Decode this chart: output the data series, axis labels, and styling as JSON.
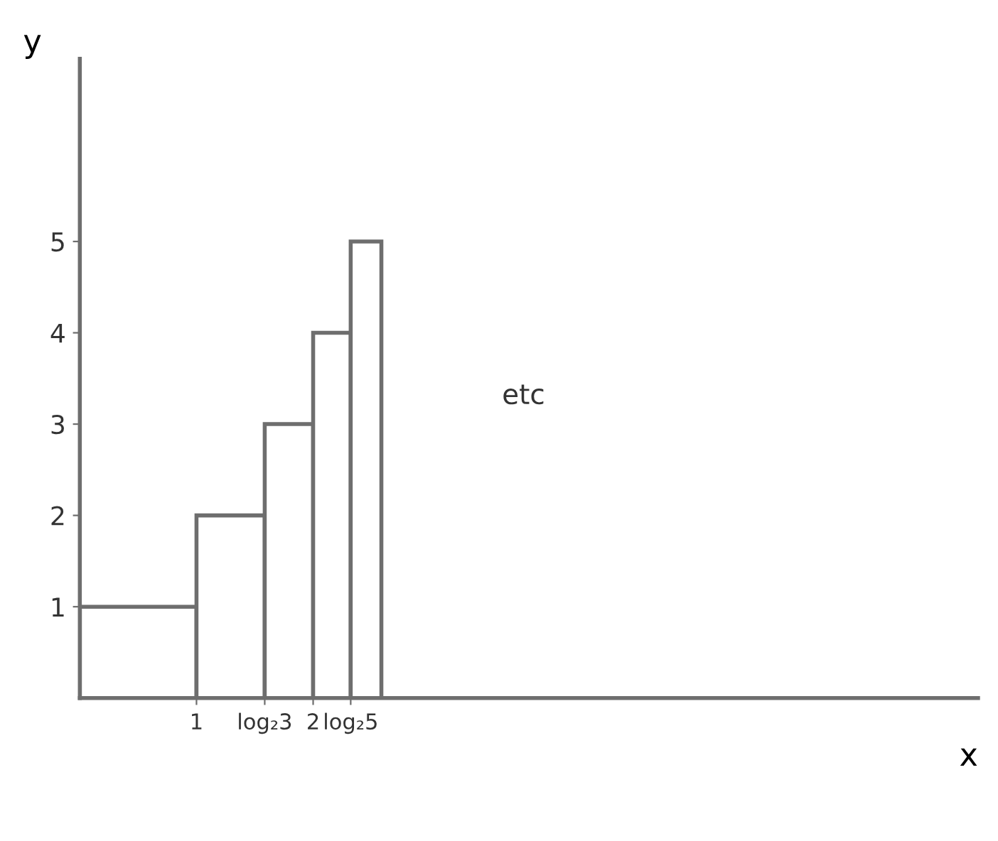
{
  "chart_data": {
    "type": "histogram",
    "xlabel": "x",
    "ylabel": "y",
    "bins": [
      0,
      1,
      1.585,
      2,
      2.322,
      2.585
    ],
    "values": [
      1,
      2,
      3,
      4,
      5
    ],
    "color": "#6e6e6e",
    "xlim": [
      0,
      7.7
    ],
    "ylim": [
      0,
      7
    ],
    "xticks": [
      1,
      {
        "value": 1.585,
        "label": "log₂3"
      },
      2,
      {
        "value": 2.322,
        "label": "log₂5"
      }
    ],
    "yticks": [
      1,
      2,
      3,
      4,
      5
    ],
    "annotations": [
      "etc"
    ],
    "grid": false,
    "legend": false
  }
}
